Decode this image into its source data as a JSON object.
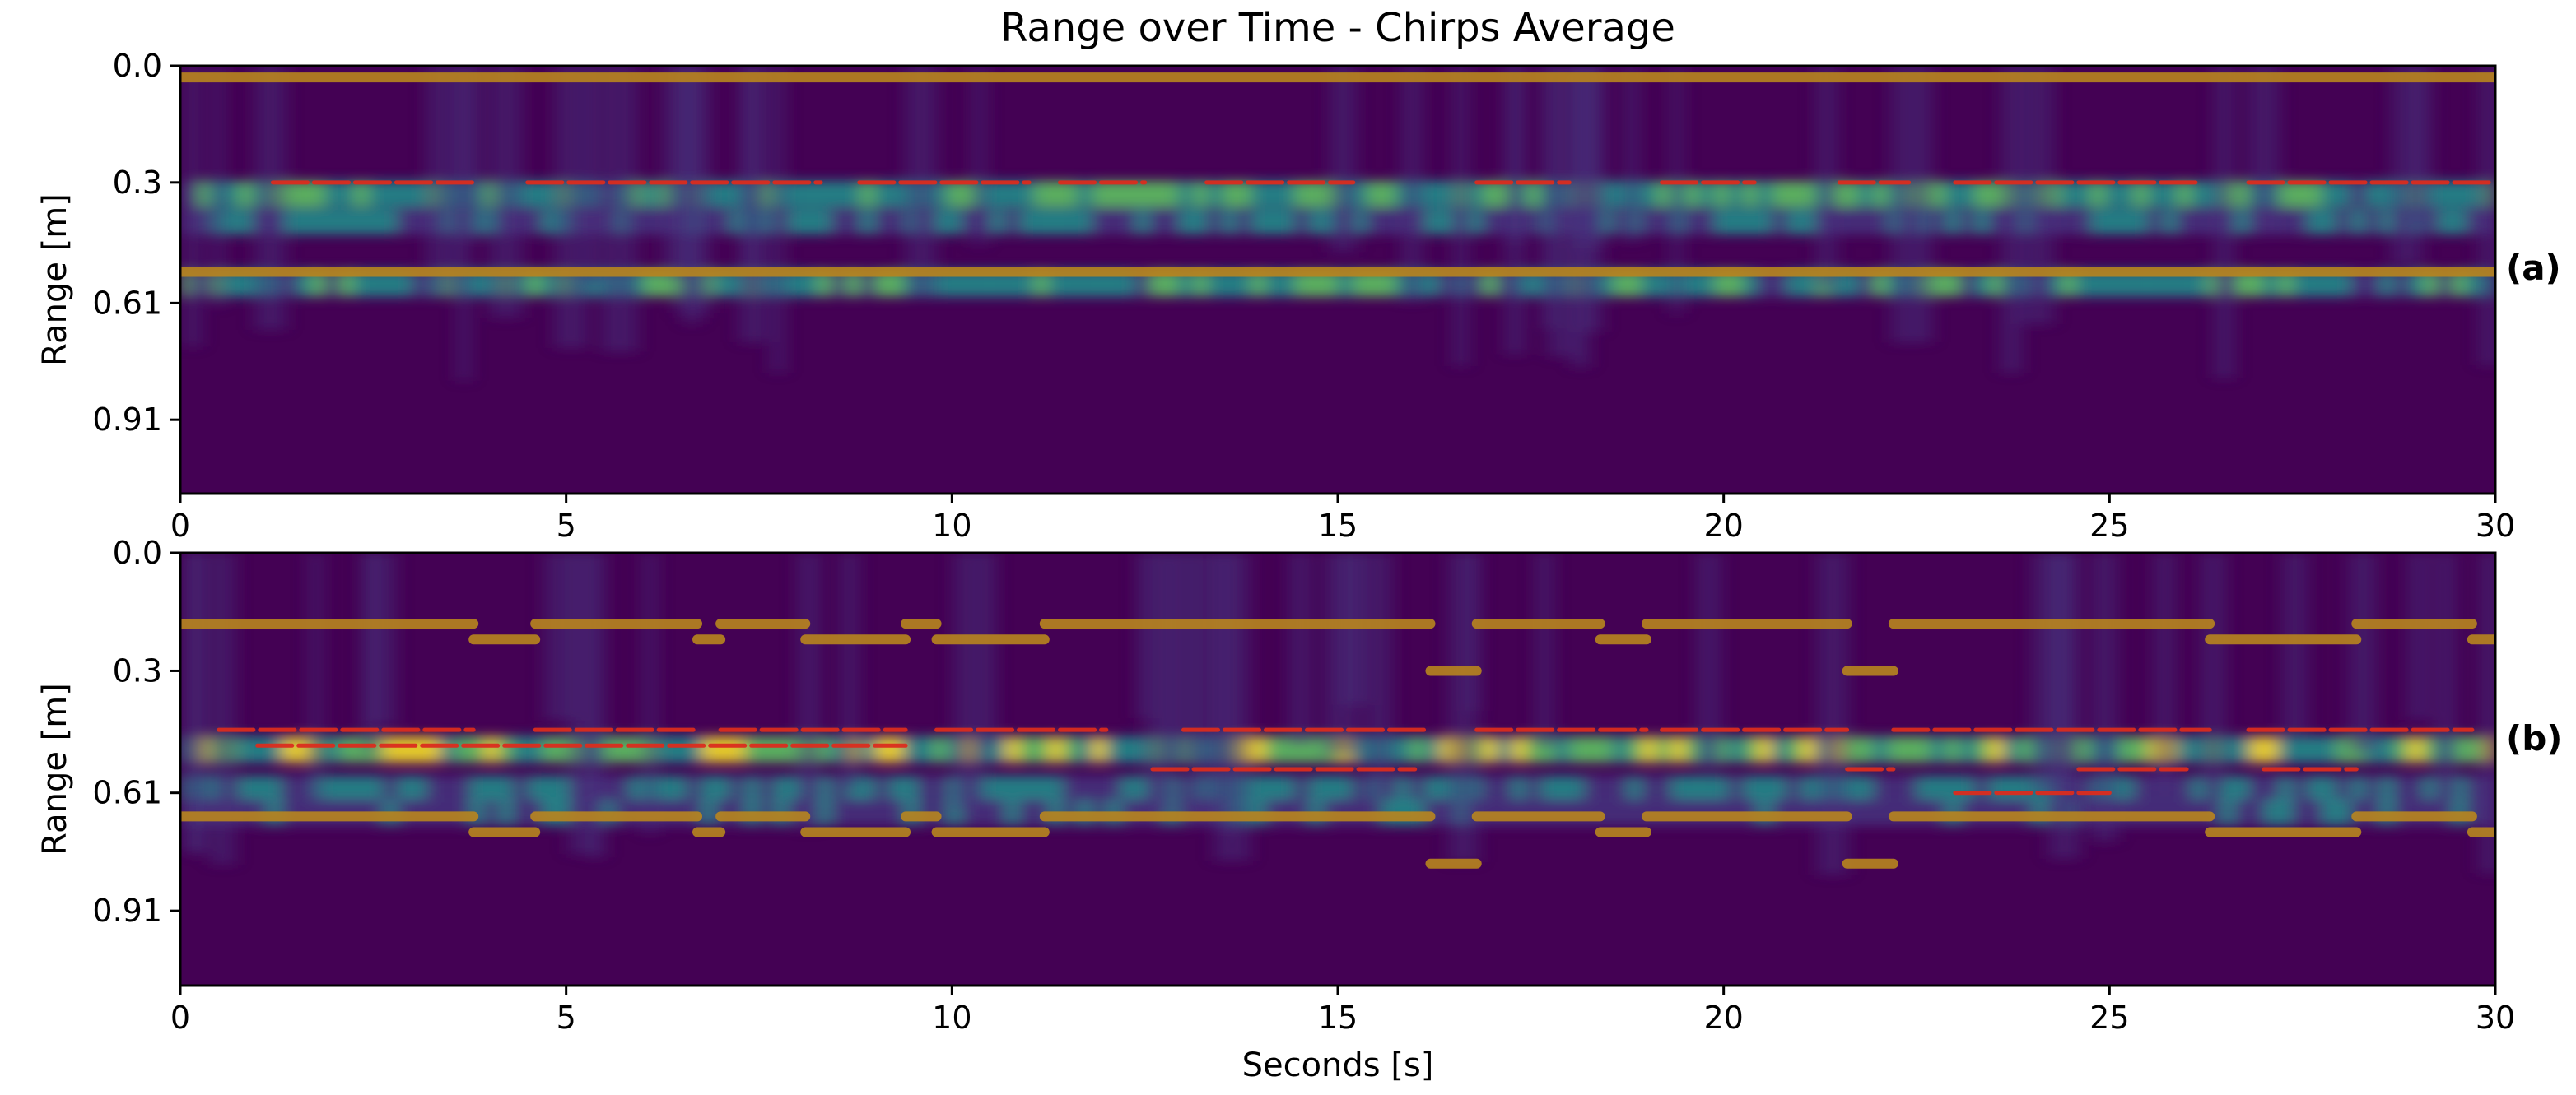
{
  "title": "Range over Time - Chirps Average",
  "xlabel": "Seconds [s]",
  "colors": {
    "background": "#440154",
    "spectrum_low": "#46327e",
    "spectrum_mid": "#21918c",
    "spectrum_high": "#5ec962",
    "spectrum_peak": "#fde725",
    "track_orange": "#b8861f",
    "track_red": "#dc2d1e"
  },
  "chart_data": [
    {
      "type": "heatmap",
      "panel": "(a)",
      "ylabel": "Range [m]",
      "x_ticks": [
        "0",
        "5",
        "10",
        "15",
        "20",
        "25",
        "30"
      ],
      "y_ticks": [
        "0.0",
        "0.3",
        "0.61",
        "0.91"
      ],
      "xlim": [
        0,
        30
      ],
      "ylim": [
        1.1,
        0.0
      ],
      "grid": false,
      "bright_bands": [
        {
          "range": 0.33,
          "intensity": 0.62
        },
        {
          "range": 0.4,
          "intensity": 0.35
        },
        {
          "range": 0.56,
          "intensity": 0.55
        }
      ],
      "tracks": [
        {
          "color": "orange",
          "segments": [
            [
              0,
              30,
              0.03
            ]
          ]
        },
        {
          "color": "orange",
          "segments": [
            [
              0,
              30,
              0.53
            ]
          ]
        },
        {
          "color": "red",
          "segments": [
            [
              1.2,
              3.8,
              0.3
            ],
            [
              4.5,
              8.3,
              0.3
            ],
            [
              8.8,
              11.0,
              0.3
            ],
            [
              11.4,
              12.5,
              0.3
            ],
            [
              13.3,
              15.2,
              0.3
            ],
            [
              16.8,
              18.0,
              0.3
            ],
            [
              19.2,
              20.4,
              0.3
            ],
            [
              21.5,
              22.4,
              0.3
            ],
            [
              23.0,
              26.2,
              0.3
            ],
            [
              26.8,
              30.0,
              0.3
            ]
          ]
        }
      ]
    },
    {
      "type": "heatmap",
      "panel": "(b)",
      "ylabel": "Range [m]",
      "x_ticks": [
        "0",
        "5",
        "10",
        "15",
        "20",
        "25",
        "30"
      ],
      "y_ticks": [
        "0.0",
        "0.3",
        "0.61",
        "0.91"
      ],
      "xlim": [
        0,
        30
      ],
      "ylim": [
        1.1,
        0.0
      ],
      "grid": false,
      "bright_bands": [
        {
          "range": 0.5,
          "intensity": 0.72
        },
        {
          "range": 0.6,
          "intensity": 0.42
        },
        {
          "range": 0.66,
          "intensity": 0.3
        }
      ],
      "tracks": [
        {
          "color": "orange",
          "segments": [
            [
              0.0,
              3.8,
              0.18
            ],
            [
              3.8,
              4.6,
              0.22
            ],
            [
              4.6,
              6.7,
              0.18
            ],
            [
              6.7,
              7.0,
              0.22
            ],
            [
              7.0,
              8.1,
              0.18
            ],
            [
              8.1,
              9.4,
              0.22
            ],
            [
              9.4,
              9.8,
              0.18
            ],
            [
              9.8,
              11.2,
              0.22
            ],
            [
              11.2,
              16.2,
              0.18
            ],
            [
              16.2,
              16.8,
              0.3
            ],
            [
              16.8,
              18.4,
              0.18
            ],
            [
              18.4,
              19.0,
              0.22
            ],
            [
              19.0,
              21.6,
              0.18
            ],
            [
              21.6,
              22.2,
              0.3
            ],
            [
              22.2,
              26.3,
              0.18
            ],
            [
              26.3,
              28.2,
              0.22
            ],
            [
              28.2,
              29.7,
              0.18
            ],
            [
              29.7,
              30.0,
              0.22
            ]
          ]
        },
        {
          "color": "orange",
          "segments": [
            [
              0.0,
              3.8,
              0.67
            ],
            [
              3.8,
              4.6,
              0.71
            ],
            [
              4.6,
              6.7,
              0.67
            ],
            [
              6.7,
              7.0,
              0.71
            ],
            [
              7.0,
              8.1,
              0.67
            ],
            [
              8.1,
              9.4,
              0.71
            ],
            [
              9.4,
              9.8,
              0.67
            ],
            [
              9.8,
              11.2,
              0.71
            ],
            [
              11.2,
              16.2,
              0.67
            ],
            [
              16.2,
              16.8,
              0.79
            ],
            [
              16.8,
              18.4,
              0.67
            ],
            [
              18.4,
              19.0,
              0.71
            ],
            [
              19.0,
              21.6,
              0.67
            ],
            [
              21.6,
              22.2,
              0.79
            ],
            [
              22.2,
              26.3,
              0.67
            ],
            [
              26.3,
              28.2,
              0.71
            ],
            [
              28.2,
              29.7,
              0.67
            ],
            [
              29.7,
              30.0,
              0.71
            ]
          ]
        },
        {
          "color": "red",
          "segments": [
            [
              0.5,
              3.8,
              0.45
            ],
            [
              4.6,
              6.7,
              0.45
            ],
            [
              7.0,
              9.4,
              0.45
            ],
            [
              9.8,
              12.0,
              0.45
            ],
            [
              13.0,
              16.2,
              0.45
            ],
            [
              16.8,
              19.0,
              0.45
            ],
            [
              19.2,
              21.6,
              0.45
            ],
            [
              22.2,
              26.3,
              0.45
            ],
            [
              26.8,
              29.7,
              0.45
            ],
            [
              1.0,
              9.4,
              0.49
            ],
            [
              12.6,
              16.0,
              0.55
            ],
            [
              21.6,
              22.2,
              0.55
            ],
            [
              24.6,
              26.0,
              0.55
            ],
            [
              27.0,
              28.2,
              0.55
            ],
            [
              23.0,
              25.0,
              0.61
            ]
          ]
        }
      ]
    }
  ]
}
